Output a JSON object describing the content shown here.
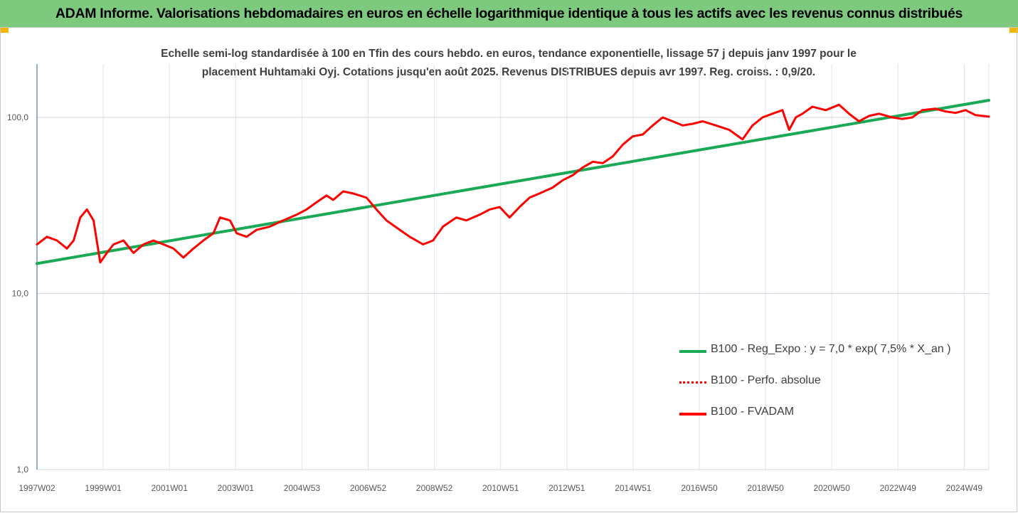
{
  "header": {
    "title": "ADAM Informe. Valorisations hebdomadaires en euros en échelle logarithmique identique à tous les actifs avec les revenus connus distribués",
    "background": "#7dc97e"
  },
  "chart_data": {
    "type": "line",
    "subtitle_lines": [
      "Echelle semi-log standardisée à 100 en Tfin des cours hebdo. en euros, tendance exponentielle, lissage 57 j depuis janv 1997 pour le",
      "placement Huhtamaki Oyj. Cotations jusqu'en août 2025. Revenus DISTRIBUES depuis avr 1997. Reg. croiss. : 0,9/20."
    ],
    "y_scale": "log",
    "ylim": [
      1,
      190
    ],
    "y_ticks": [
      "1,0",
      "10,0",
      "100,0"
    ],
    "x_tick_labels": [
      "1997W02",
      "1999W01",
      "2001W01",
      "2003W01",
      "2004W53",
      "2006W52",
      "2008W52",
      "2010W51",
      "2012W51",
      "2014W51",
      "2016W50",
      "2018W50",
      "2020W50",
      "2022W49",
      "2024W49"
    ],
    "xlim": [
      1997.0,
      2025.6
    ],
    "grid": "vertical and horizontal",
    "legend_position": "bottom-right",
    "series": [
      {
        "name": "B100 - Reg_Expo : y = 7,0 * exp( 7,5% *  X_an )",
        "color": "#1aaa55",
        "style": "solid",
        "x": [
          1997.0,
          2025.6
        ],
        "values": [
          14.8,
          125.0
        ]
      },
      {
        "name": "B100 - Perfo. absolue",
        "color": "#ff0000",
        "style": "dotted",
        "x": [],
        "values": []
      },
      {
        "name": "B100 - FVADAM",
        "color": "#ff0000",
        "style": "solid",
        "x": [
          1997.0,
          1997.3,
          1997.6,
          1997.9,
          1998.1,
          1998.3,
          1998.5,
          1998.7,
          1998.9,
          1999.1,
          1999.3,
          1999.6,
          1999.9,
          2000.2,
          2000.5,
          2000.8,
          2001.1,
          2001.4,
          2001.7,
          2002.0,
          2002.3,
          2002.5,
          2002.8,
          2003.0,
          2003.3,
          2003.6,
          2004.0,
          2004.4,
          2004.8,
          2005.1,
          2005.4,
          2005.7,
          2005.9,
          2006.2,
          2006.5,
          2006.9,
          2007.2,
          2007.5,
          2007.9,
          2008.2,
          2008.6,
          2008.9,
          2009.2,
          2009.6,
          2009.9,
          2010.3,
          2010.6,
          2010.9,
          2011.2,
          2011.5,
          2011.8,
          2012.1,
          2012.5,
          2012.8,
          2013.1,
          2013.4,
          2013.7,
          2014.0,
          2014.3,
          2014.6,
          2014.9,
          2015.2,
          2015.5,
          2015.8,
          2016.1,
          2016.4,
          2016.7,
          2017.0,
          2017.4,
          2017.8,
          2018.2,
          2018.5,
          2018.8,
          2019.1,
          2019.4,
          2019.6,
          2019.8,
          2020.0,
          2020.3,
          2020.7,
          2021.1,
          2021.4,
          2021.7,
          2022.0,
          2022.3,
          2022.7,
          2023.0,
          2023.3,
          2023.6,
          2024.0,
          2024.3,
          2024.6,
          2024.9,
          2025.2,
          2025.6
        ],
        "values": [
          19,
          21,
          20,
          18,
          20,
          27,
          30,
          26,
          15,
          17,
          19,
          20,
          17,
          19,
          20,
          19,
          18,
          16,
          18,
          20,
          22,
          27,
          26,
          22,
          21,
          23,
          24,
          26,
          28,
          30,
          33,
          36,
          34,
          38,
          37,
          35,
          30,
          26,
          23,
          21,
          19,
          20,
          24,
          27,
          26,
          28,
          30,
          31,
          27,
          31,
          35,
          37,
          40,
          44,
          47,
          52,
          56,
          55,
          60,
          70,
          78,
          80,
          90,
          100,
          95,
          90,
          92,
          95,
          90,
          85,
          75,
          90,
          100,
          105,
          110,
          85,
          100,
          105,
          115,
          110,
          118,
          105,
          95,
          102,
          105,
          100,
          98,
          100,
          110,
          112,
          108,
          106,
          110,
          103,
          101
        ]
      }
    ]
  }
}
